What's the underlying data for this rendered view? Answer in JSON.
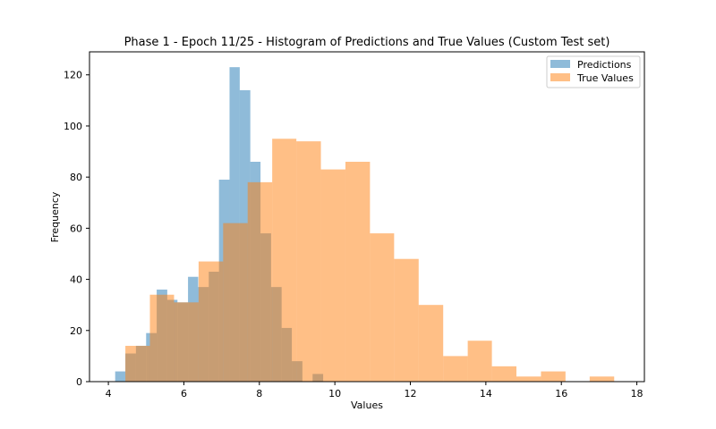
{
  "chart_data": {
    "type": "histogram",
    "title": "Phase 1 - Epoch 11/25 - Histogram of Predictions and True Values (Custom Test set)",
    "xlabel": "Values",
    "ylabel": "Frequency",
    "xlim": [
      3.5,
      18.2
    ],
    "ylim": [
      0,
      129
    ],
    "xticks": [
      4,
      6,
      8,
      10,
      12,
      14,
      16,
      18
    ],
    "yticks": [
      0,
      20,
      40,
      60,
      80,
      100,
      120
    ],
    "legend_position": "top-right",
    "grid": false,
    "series": [
      {
        "name": "Predictions",
        "color": "#1f77b4",
        "alpha": 0.5,
        "bins": [
          [
            4.18,
            4.45,
            4
          ],
          [
            4.45,
            4.73,
            11
          ],
          [
            4.73,
            5.0,
            14
          ],
          [
            5.0,
            5.28,
            19
          ],
          [
            5.28,
            5.56,
            36
          ],
          [
            5.56,
            5.83,
            32
          ],
          [
            5.83,
            6.11,
            31
          ],
          [
            6.11,
            6.38,
            41
          ],
          [
            6.38,
            6.66,
            37
          ],
          [
            6.66,
            6.93,
            43
          ],
          [
            6.93,
            7.21,
            79
          ],
          [
            7.21,
            7.48,
            123
          ],
          [
            7.48,
            7.76,
            114
          ],
          [
            7.76,
            8.03,
            86
          ],
          [
            8.03,
            8.31,
            58
          ],
          [
            8.31,
            8.59,
            37
          ],
          [
            8.59,
            8.86,
            21
          ],
          [
            8.86,
            9.14,
            8
          ],
          [
            9.14,
            9.41,
            0
          ],
          [
            9.41,
            9.69,
            3
          ]
        ]
      },
      {
        "name": "True Values",
        "color": "#ff7f0e",
        "alpha": 0.5,
        "bins": [
          [
            4.45,
            5.1,
            14
          ],
          [
            5.1,
            5.74,
            34
          ],
          [
            5.74,
            6.39,
            31
          ],
          [
            6.39,
            7.04,
            47
          ],
          [
            7.04,
            7.69,
            62
          ],
          [
            7.69,
            8.34,
            78
          ],
          [
            8.34,
            8.98,
            95
          ],
          [
            8.98,
            9.63,
            94
          ],
          [
            9.63,
            10.28,
            83
          ],
          [
            10.28,
            10.93,
            86
          ],
          [
            10.93,
            11.57,
            58
          ],
          [
            11.57,
            12.22,
            48
          ],
          [
            12.22,
            12.87,
            30
          ],
          [
            12.87,
            13.52,
            10
          ],
          [
            13.52,
            14.16,
            16
          ],
          [
            14.16,
            14.81,
            6
          ],
          [
            14.81,
            15.46,
            2
          ],
          [
            15.46,
            16.11,
            4
          ],
          [
            16.11,
            16.75,
            0
          ],
          [
            16.75,
            17.4,
            2
          ]
        ]
      }
    ]
  }
}
